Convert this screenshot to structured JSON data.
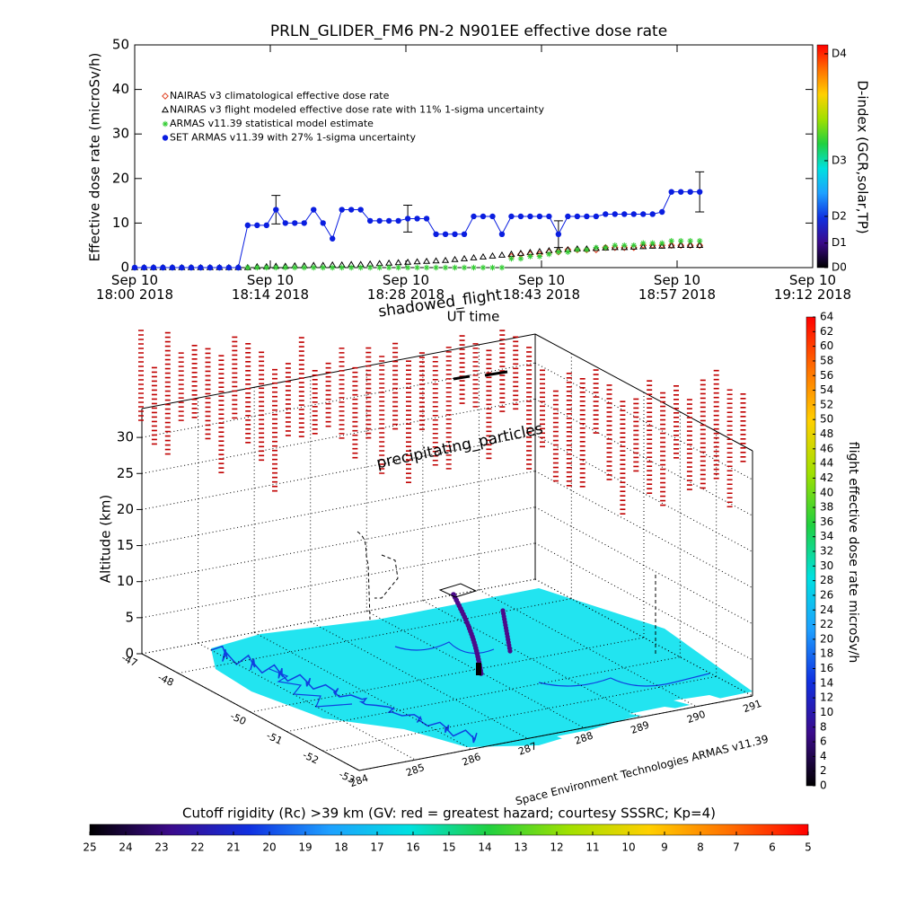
{
  "chart_data": [
    {
      "type": "line",
      "title": "PRLN_GLIDER_FM6 PN-2 N901EE effective dose rate",
      "y_label": "Effective dose rate (microSv/h)",
      "x_label": "UT time",
      "xlim": [
        "2018-09-10T18:00",
        "2018-09-10T19:12"
      ],
      "xticks": [
        {
          "value": "2018-09-10T18:00:00",
          "label": "Sep 10\n18:00 2018"
        },
        {
          "value": "2018-09-10T18:14:24",
          "label": "Sep 10\n18:14 2018"
        },
        {
          "value": "2018-09-10T18:28:48",
          "label": "Sep 10\n18:28 2018"
        },
        {
          "value": "2018-09-10T18:43:12",
          "label": "Sep 10\n18:43 2018"
        },
        {
          "value": "2018-09-10T18:57:36",
          "label": "Sep 10\n18:57 2018"
        },
        {
          "value": "2018-09-10T19:12:00",
          "label": "Sep 10\n19:12 2018"
        }
      ],
      "ylim": [
        0,
        50
      ],
      "yticks": [
        0,
        10,
        20,
        30,
        40,
        50
      ],
      "legend": "upper left",
      "x": [
        "2018-09-10T18:00",
        "2018-09-10T18:01",
        "2018-09-10T18:02",
        "2018-09-10T18:03",
        "2018-09-10T18:04",
        "2018-09-10T18:05",
        "2018-09-10T18:06",
        "2018-09-10T18:07",
        "2018-09-10T18:08",
        "2018-09-10T18:09",
        "2018-09-10T18:10",
        "2018-09-10T18:11",
        "2018-09-10T18:12",
        "2018-09-10T18:13",
        "2018-09-10T18:14",
        "2018-09-10T18:15",
        "2018-09-10T18:16",
        "2018-09-10T18:17",
        "2018-09-10T18:18",
        "2018-09-10T18:19",
        "2018-09-10T18:20",
        "2018-09-10T18:21",
        "2018-09-10T18:22",
        "2018-09-10T18:23",
        "2018-09-10T18:24",
        "2018-09-10T18:25",
        "2018-09-10T18:26",
        "2018-09-10T18:27",
        "2018-09-10T18:28",
        "2018-09-10T18:29",
        "2018-09-10T18:30",
        "2018-09-10T18:31",
        "2018-09-10T18:32",
        "2018-09-10T18:33",
        "2018-09-10T18:34",
        "2018-09-10T18:35",
        "2018-09-10T18:36",
        "2018-09-10T18:37",
        "2018-09-10T18:38",
        "2018-09-10T18:39",
        "2018-09-10T18:40",
        "2018-09-10T18:41",
        "2018-09-10T18:42",
        "2018-09-10T18:43",
        "2018-09-10T18:44",
        "2018-09-10T18:45",
        "2018-09-10T18:46",
        "2018-09-10T18:47",
        "2018-09-10T18:48",
        "2018-09-10T18:49",
        "2018-09-10T18:50",
        "2018-09-10T18:51",
        "2018-09-10T18:52",
        "2018-09-10T18:53",
        "2018-09-10T18:54",
        "2018-09-10T18:55",
        "2018-09-10T18:56",
        "2018-09-10T18:57",
        "2018-09-10T18:58",
        "2018-09-10T18:59",
        "2018-09-10T19:00"
      ],
      "series": [
        {
          "name": "NAIRAS v3 climatological effective dose rate",
          "color": "#e04020",
          "marker": "diamond",
          "values": [
            null,
            null,
            null,
            null,
            null,
            null,
            null,
            null,
            null,
            null,
            null,
            null,
            null,
            null,
            null,
            null,
            null,
            null,
            null,
            null,
            null,
            null,
            null,
            null,
            null,
            null,
            null,
            null,
            null,
            null,
            null,
            null,
            null,
            null,
            null,
            null,
            null,
            null,
            null,
            null,
            2.5,
            3,
            3,
            3,
            3.5,
            3.5,
            4,
            4,
            4,
            4,
            4.5,
            4.5,
            4.5,
            4.5,
            5,
            5,
            5,
            5,
            5,
            5,
            5
          ]
        },
        {
          "name": "NAIRAS v3 flight modeled effective dose rate with 11% 1-sigma uncertainty",
          "color": "#000000",
          "marker": "triangle",
          "values": [
            0,
            0,
            0,
            0,
            0,
            0,
            0,
            0,
            0,
            0,
            0,
            0,
            0,
            0.2,
            0.2,
            0.3,
            0.3,
            0.4,
            0.4,
            0.5,
            0.5,
            0.6,
            0.6,
            0.7,
            0.7,
            0.8,
            0.9,
            1,
            1.1,
            1.2,
            1.3,
            1.4,
            1.5,
            1.6,
            1.8,
            2,
            2.2,
            2.4,
            2.6,
            2.8,
            3,
            3.2,
            3.4,
            3.6,
            3.8,
            4,
            4,
            4.2,
            4.2,
            4.3,
            4.4,
            4.5,
            4.5,
            4.6,
            4.7,
            4.8,
            4.8,
            4.9,
            5,
            5,
            5
          ]
        },
        {
          "name": "ARMAS v11.39 statistical model estimate",
          "color": "#33cc33",
          "marker": "star",
          "values": [
            0,
            0,
            0,
            0,
            0,
            0,
            0,
            0,
            0,
            0,
            0,
            0,
            0,
            0,
            0,
            0,
            0,
            0,
            0,
            0,
            0,
            0,
            0,
            0,
            0,
            0,
            0,
            0,
            0,
            0,
            0,
            0,
            0,
            0,
            0,
            0,
            0,
            0,
            0,
            0,
            2,
            2,
            2.5,
            2.5,
            3,
            3.5,
            3.5,
            4,
            4,
            4.5,
            4.5,
            5,
            5,
            5,
            5.5,
            5.5,
            5.5,
            6,
            6,
            6,
            6
          ]
        },
        {
          "name": "SET ARMAS v11.39 with 27% 1-sigma uncertainty",
          "color": "#0a1ee0",
          "marker": "circle",
          "line": true,
          "values": [
            0,
            0,
            0,
            0,
            0,
            0,
            0,
            0,
            0,
            0,
            0,
            0,
            9.5,
            9.5,
            9.5,
            13,
            10,
            10,
            10,
            13,
            10,
            6.5,
            13,
            13,
            13,
            10.5,
            10.5,
            10.5,
            10.5,
            11,
            11,
            11,
            7.5,
            7.5,
            7.5,
            7.5,
            11.5,
            11.5,
            11.5,
            7.5,
            11.5,
            11.5,
            11.5,
            11.5,
            11.5,
            7.5,
            11.5,
            11.5,
            11.5,
            11.5,
            12,
            12,
            12,
            12,
            12,
            12,
            12.5,
            17,
            17,
            17,
            17
          ],
          "errors": [
            null,
            null,
            null,
            null,
            null,
            null,
            null,
            null,
            null,
            null,
            null,
            null,
            null,
            null,
            null,
            3.2,
            null,
            null,
            null,
            null,
            null,
            null,
            null,
            null,
            null,
            null,
            null,
            null,
            null,
            3,
            null,
            null,
            null,
            null,
            null,
            null,
            null,
            null,
            null,
            null,
            null,
            null,
            null,
            null,
            null,
            3,
            null,
            null,
            null,
            null,
            null,
            null,
            null,
            null,
            null,
            null,
            null,
            null,
            null,
            null,
            4.5
          ]
        }
      ],
      "y2_label": "D-index (GCR,solar,TP)",
      "y2lim": [
        0,
        50
      ],
      "y2ticks": [
        {
          "value": 0,
          "label": "D0"
        },
        {
          "value": 5.5,
          "label": "D1"
        },
        {
          "value": 11.5,
          "label": "D2"
        },
        {
          "value": 24,
          "label": "D3"
        },
        {
          "value": 48,
          "label": "D4"
        }
      ],
      "colorbar_colors": [
        "#000000",
        "#3b0a8a",
        "#1030e0",
        "#1ea0ff",
        "#00e0e0",
        "#20d040",
        "#a0e000",
        "#ffd000",
        "#ff7000",
        "#ff0000"
      ]
    },
    {
      "type": "scatter3d",
      "annotations": [
        "shadowed_flight",
        "precipitating_particles"
      ],
      "credit": "Space Environment Technologies ARMAS v11.39",
      "z_label": "Altitude (km)",
      "zlim": [
        0,
        34
      ],
      "zticks": [
        0,
        5,
        10,
        15,
        20,
        25,
        30
      ],
      "latlim": [
        -47,
        -53
      ],
      "latticks": [
        -47,
        -48,
        -50,
        -51,
        -52,
        -53
      ],
      "lonlim": [
        284,
        291
      ],
      "lonticks": [
        284,
        285,
        286,
        287,
        288,
        289,
        290,
        291
      ],
      "colorbar": {
        "label": "flight effective dose rate microSv/h",
        "lim": [
          0,
          64
        ],
        "ticks": [
          0,
          2,
          4,
          6,
          8,
          10,
          12,
          14,
          16,
          18,
          20,
          22,
          24,
          26,
          28,
          30,
          32,
          34,
          36,
          38,
          40,
          42,
          44,
          46,
          48,
          50,
          52,
          54,
          56,
          58,
          60,
          62,
          64
        ],
        "colors": [
          "#000000",
          "#3b0a8a",
          "#1030e0",
          "#1ea0ff",
          "#00e0e0",
          "#20d040",
          "#a0e000",
          "#ffd000",
          "#ff7000",
          "#ff0000"
        ]
      },
      "rigidity_bar": {
        "title": "Cutoff rigidity (Rc) >39 km (GV: red = greatest hazard; courtesy SSSRC; Kp=4)",
        "lim": [
          25,
          5
        ],
        "ticks": [
          25,
          24,
          23,
          22,
          21,
          20,
          19,
          18,
          17,
          16,
          15,
          14,
          13,
          12,
          11,
          10,
          9,
          8,
          7,
          6,
          5
        ],
        "colors": [
          "#000000",
          "#3b0a8a",
          "#1030e0",
          "#1ea0ff",
          "#00e0e0",
          "#20d040",
          "#a0e000",
          "#ffd000",
          "#ff7000",
          "#ff0000"
        ]
      }
    }
  ]
}
